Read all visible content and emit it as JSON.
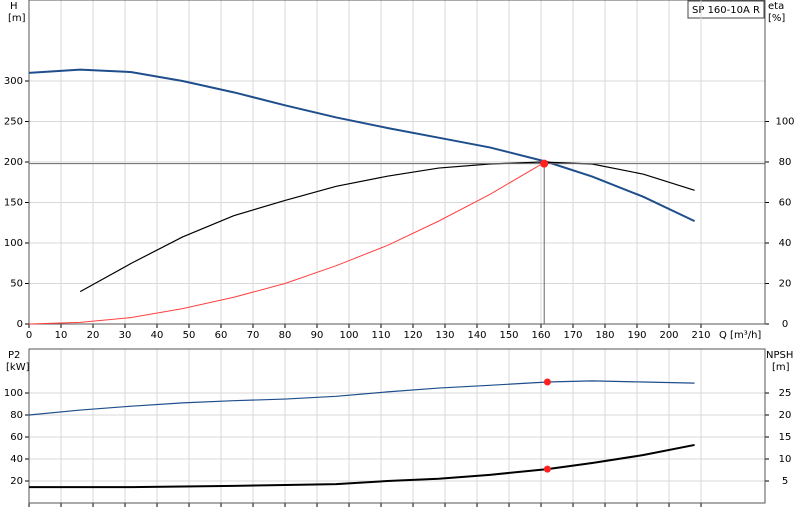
{
  "chart_data": [
    {
      "type": "line",
      "title": "SP 160-10A R",
      "ylabel": "H",
      "yunit": "[m]",
      "y2label": "eta",
      "y2unit": "[%]",
      "xlabel": "Q [m³/h]",
      "xlim": [
        0,
        230
      ],
      "xticks": [
        0,
        10,
        20,
        30,
        40,
        50,
        60,
        70,
        80,
        90,
        100,
        110,
        120,
        130,
        140,
        150,
        160,
        170,
        180,
        190,
        200,
        210
      ],
      "ylim": [
        0,
        400
      ],
      "yticks": [
        0,
        50,
        100,
        150,
        200,
        250,
        300
      ],
      "y2lim": [
        0,
        160
      ],
      "y2ticks": [
        0,
        20,
        40,
        60,
        80,
        100
      ],
      "grid": true,
      "show_xtick_labels": true,
      "series": [
        {
          "color": "#1f4e8c",
          "width": 2,
          "x": [
            0,
            16,
            32,
            48,
            64,
            80,
            96,
            112,
            128,
            144,
            162,
            176,
            192,
            208
          ],
          "values": [
            310,
            314,
            311,
            300,
            286,
            270,
            255,
            242,
            230,
            218,
            200,
            182,
            157,
            127
          ]
        },
        {
          "color": "#000000",
          "width": 1.2,
          "axis": "y2",
          "x": [
            16,
            32,
            48,
            64,
            80,
            96,
            112,
            128,
            144,
            160,
            176,
            192,
            208
          ],
          "values": [
            16,
            30,
            43,
            53.5,
            61,
            68,
            73,
            77,
            79,
            80,
            79,
            74,
            66
          ]
        },
        {
          "color": "#ff4040",
          "width": 1,
          "x": [
            0,
            16,
            32,
            48,
            64,
            80,
            96,
            112,
            128,
            144,
            160
          ],
          "values": [
            0,
            2,
            8,
            19,
            33,
            50,
            72,
            97,
            127,
            160,
            197
          ]
        }
      ],
      "duty_point": {
        "x": 161,
        "y": 198
      }
    },
    {
      "type": "line",
      "ylabel": "P2",
      "yunit": "[kW]",
      "y2label": "NPSH",
      "y2unit": "[m]",
      "xlim": [
        0,
        230
      ],
      "xticks": [
        0,
        10,
        20,
        30,
        40,
        50,
        60,
        70,
        80,
        90,
        100,
        110,
        120,
        130,
        140,
        150,
        160,
        170,
        180,
        190,
        200,
        210
      ],
      "ylim": [
        0,
        140
      ],
      "yticks": [
        20,
        40,
        60,
        80,
        100
      ],
      "y2lim": [
        0,
        35
      ],
      "y2ticks": [
        5,
        10,
        15,
        20,
        25
      ],
      "grid": true,
      "show_xtick_labels": false,
      "series": [
        {
          "color": "#1f4e8c",
          "width": 1.2,
          "x": [
            0,
            16,
            32,
            48,
            64,
            80,
            96,
            112,
            128,
            144,
            162,
            176,
            192,
            208
          ],
          "values": [
            80,
            84.5,
            88,
            91,
            93,
            94.5,
            97,
            101,
            104.5,
            107,
            110,
            111,
            110,
            109
          ],
          "marker": {
            "x": 162,
            "y": 110
          }
        },
        {
          "color": "#000000",
          "width": 2,
          "axis": "y2",
          "x": [
            0,
            32,
            64,
            80,
            96,
            112,
            128,
            144,
            162,
            176,
            192,
            208
          ],
          "values": [
            3.6,
            3.6,
            3.9,
            4.1,
            4.3,
            5,
            5.5,
            6.4,
            7.7,
            9.1,
            10.9,
            13.2
          ],
          "marker": {
            "x": 162,
            "y": 7.7
          }
        }
      ]
    }
  ]
}
